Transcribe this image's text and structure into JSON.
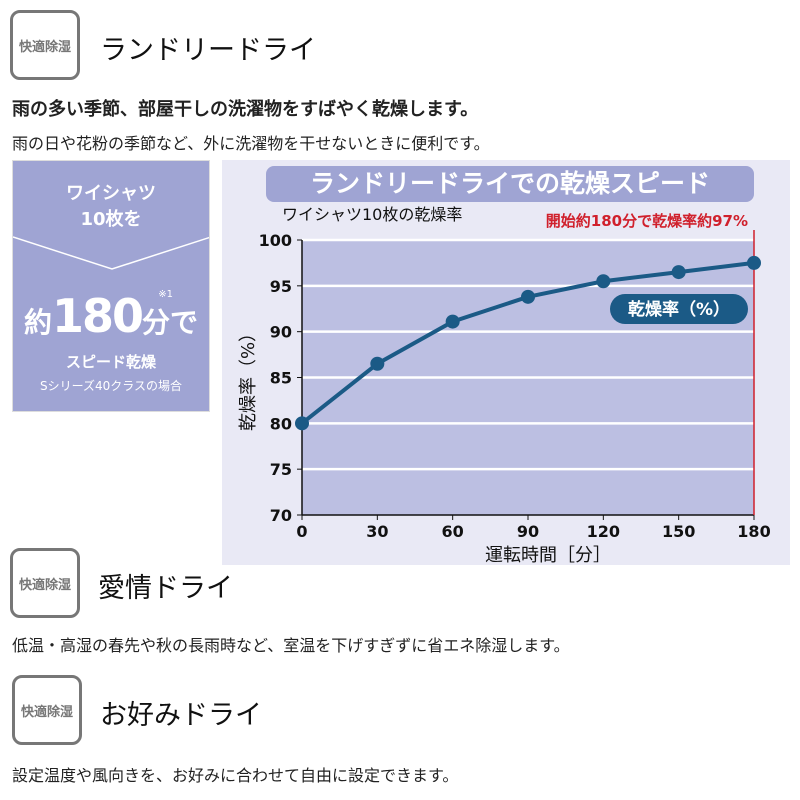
{
  "sections": [
    {
      "badge": "快適除湿",
      "title": "ランドリードライ",
      "lead": "雨の多い季節、部屋干しの洗濯物をすばやく乾燥します。",
      "desc": "雨の日や花粉の季節など、外に洗濯物を干せないときに便利です。"
    },
    {
      "badge": "快適除湿",
      "title": "愛情ドライ",
      "desc": "低温・高湿の春先や秋の長雨時など、室温を下げすぎずに省エネ除湿します。"
    },
    {
      "badge": "快適除湿",
      "title": "お好みドライ",
      "desc": "設定温度や風向きを、お好みに合わせて自由に設定できます。"
    }
  ],
  "promo": {
    "line1": "ワイシャツ",
    "line2": "10枚を",
    "prefix": "約",
    "number": "180",
    "suffix": "分で",
    "note": "※1",
    "line4": "スピード乾燥",
    "line5": "Sシリーズ40クラスの場合"
  },
  "chart_data": {
    "type": "line",
    "title": "ランドリードライでの乾燥スピード",
    "subtitle": "ワイシャツ10枚の乾燥率",
    "annotation": "開始約180分で乾燥率約97%",
    "legend": "乾燥率（%）",
    "xlabel": "運転時間［分］",
    "ylabel": "乾燥率（%）",
    "x": [
      0,
      30,
      60,
      90,
      120,
      150,
      180
    ],
    "series": [
      {
        "name": "乾燥率（%）",
        "values": [
          80,
          86.5,
          91.1,
          93.8,
          95.5,
          96.5,
          97.5
        ]
      }
    ],
    "xlim": [
      0,
      180
    ],
    "ylim": [
      70,
      100
    ],
    "yticks": [
      70,
      75,
      80,
      85,
      90,
      95,
      100
    ],
    "grid": true,
    "colors": {
      "line": "#1b5a86",
      "plot_bg": "#bcbfe2",
      "annotation": "#d0202c"
    }
  }
}
